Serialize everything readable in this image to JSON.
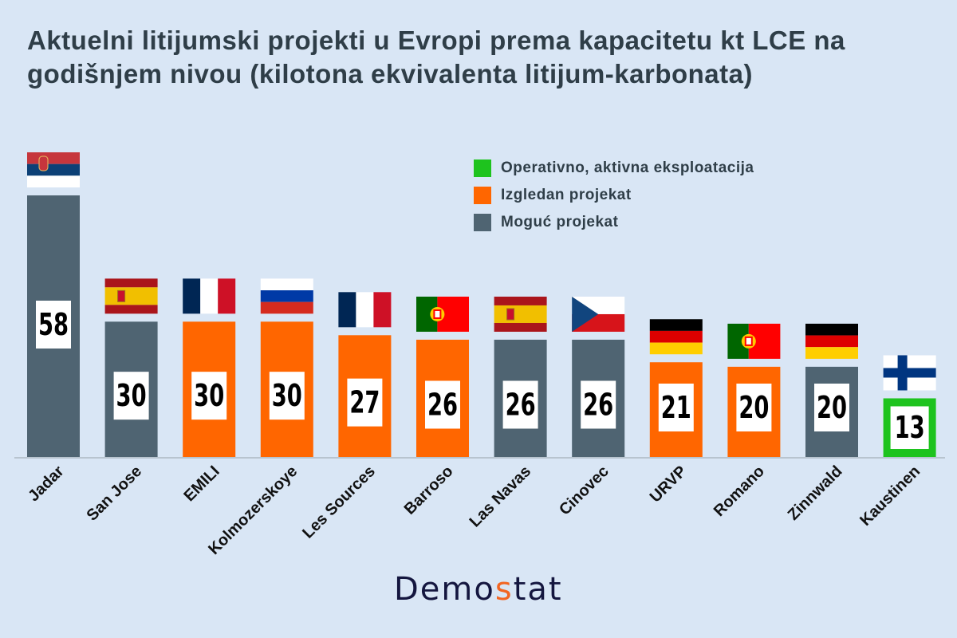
{
  "title": "Aktuelni litijumski projekti u Evropi prema kapacitetu kt LCE na godišnjem nivou (kilotona ekvivalenta litijum-karbonata)",
  "legend": [
    {
      "label": "Operativno, aktivna eksploatacija",
      "color": "#1ec31e",
      "key": "operative"
    },
    {
      "label": "Izgledan projekat",
      "color": "#ff6600",
      "key": "likely"
    },
    {
      "label": "Moguć projekat",
      "color": "#4f6472",
      "key": "possible"
    }
  ],
  "logo": {
    "part1": "Demo",
    "part2": "s",
    "part3": "tat"
  },
  "chart_data": {
    "type": "bar",
    "title": "Aktuelni litijumski projekti u Evropi prema kapacitetu kt LCE na godišnjem nivou (kilotona ekvivalenta litijum-karbonata)",
    "categories": [
      "Jadar",
      "San Jose",
      "EMILI",
      "Kolmozerskoye",
      "Les Sources",
      "Barroso",
      "Las Navas",
      "Cinovec",
      "URVP",
      "Romano",
      "Zinnwald",
      "Kaustinen"
    ],
    "values": [
      58,
      30,
      30,
      30,
      27,
      26,
      26,
      26,
      21,
      20,
      20,
      13
    ],
    "status": [
      "possible",
      "possible",
      "likely",
      "likely",
      "likely",
      "likely",
      "possible",
      "possible",
      "likely",
      "likely",
      "possible",
      "operative"
    ],
    "flags": [
      "serbia-flag-icon",
      "spain-flag-icon",
      "france-flag-icon",
      "russia-flag-icon",
      "france-flag-icon",
      "portugal-flag-icon",
      "spain-flag-icon",
      "czechia-flag-icon",
      "germany-flag-icon",
      "portugal-flag-icon",
      "germany-flag-icon",
      "finland-flag-icon"
    ],
    "ylim": [
      0,
      60
    ],
    "grid": false,
    "legend_position": "top-right",
    "xlabel": "",
    "ylabel": ""
  }
}
